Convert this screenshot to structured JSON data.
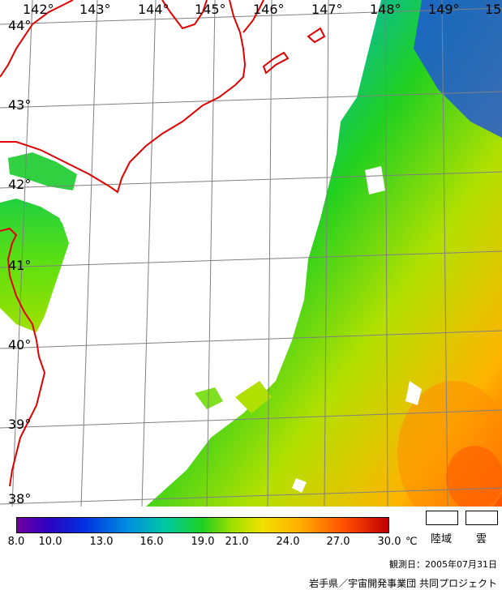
{
  "map": {
    "longitude_labels": [
      "142°",
      "143°",
      "144°",
      "145°",
      "146°",
      "147°",
      "148°",
      "149°",
      "15"
    ],
    "latitude_labels": [
      "44°",
      "43°",
      "42°",
      "41°",
      "40°",
      "39°",
      "38°"
    ],
    "coastline_color": "#e00000",
    "grid_color": "#808080"
  },
  "colorbar": {
    "tick_labels": [
      "8.0",
      "10.0",
      "13.0",
      "16.0",
      "19.0",
      "21.0",
      "24.0",
      "27.0",
      "30.0"
    ],
    "unit": "℃",
    "min": 8.0,
    "max": 30.0
  },
  "legend": {
    "land_label": "陸域",
    "cloud_label": "雲"
  },
  "footer": {
    "observation_date": "観測日：2005年07月31日",
    "credit": "岩手県／宇宙開発事業団 共同プロジェクト"
  }
}
